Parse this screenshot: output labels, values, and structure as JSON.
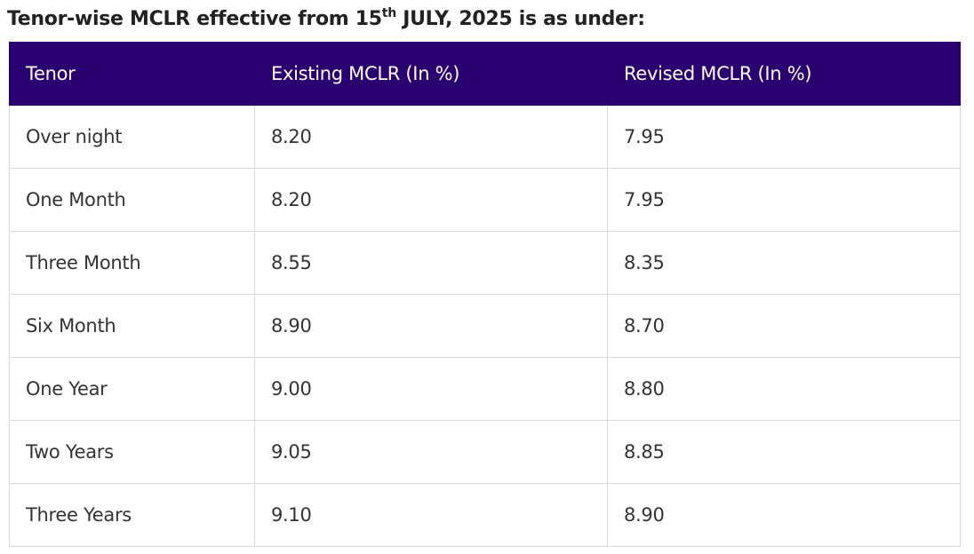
{
  "heading": {
    "before": "Tenor-wise MCLR effective from 15",
    "sup": "th",
    "after": " JULY, 2025 is as under:"
  },
  "table": {
    "header": [
      "Tenor",
      "Existing MCLR (In %)",
      "Revised MCLR (In %)"
    ],
    "rows": [
      [
        "Over night",
        "8.20",
        "7.95"
      ],
      [
        "One Month",
        "8.20",
        "7.95"
      ],
      [
        "Three Month",
        "8.55",
        "8.35"
      ],
      [
        "Six Month",
        "8.90",
        "8.70"
      ],
      [
        "One Year",
        "9.00",
        "8.80"
      ],
      [
        "Two Years",
        "9.05",
        "8.85"
      ],
      [
        "Three Years",
        "9.10",
        "8.90"
      ]
    ]
  }
}
